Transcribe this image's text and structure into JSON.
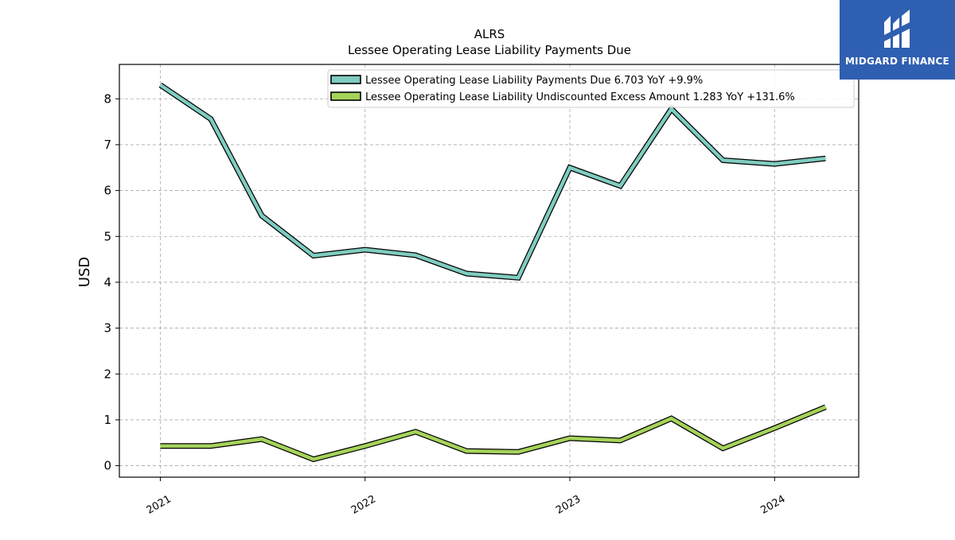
{
  "brand": {
    "name": "MIDGARD FINANCE"
  },
  "chart_data": {
    "type": "line",
    "title": "ALRS",
    "subtitle": "Lessee Operating Lease Liability Payments Due",
    "xlabel": "",
    "ylabel": "USD",
    "x": [
      "2021-01-01",
      "2021-04-01",
      "2021-07-01",
      "2021-10-01",
      "2022-01-01",
      "2022-04-01",
      "2022-07-01",
      "2022-10-01",
      "2023-01-01",
      "2023-04-01",
      "2023-07-01",
      "2023-10-01",
      "2024-01-01",
      "2024-04-01"
    ],
    "xticks": [
      "2021",
      "2022",
      "2023",
      "2024"
    ],
    "xtick_dates": [
      "2021-01-01",
      "2022-01-01",
      "2023-01-01",
      "2024-01-01"
    ],
    "xlim": [
      "2020-10-20",
      "2024-05-30"
    ],
    "ylim": [
      -0.25,
      8.75
    ],
    "yticks": [
      0,
      1,
      2,
      3,
      4,
      5,
      6,
      7,
      8
    ],
    "grid": true,
    "legend_position": "upper right",
    "series": [
      {
        "name": "Lessee Operating Lease Liability Payments Due",
        "legend_value": "6.703 YoY +9.9%",
        "color": "#7fccc0",
        "values": [
          8.3,
          7.56,
          5.45,
          4.58,
          4.71,
          4.59,
          4.19,
          4.1,
          6.5,
          6.1,
          7.78,
          6.66,
          6.58,
          6.7
        ]
      },
      {
        "name": "Lessee Operating Lease Liability Undiscounted Excess Amount",
        "legend_value": "1.283 YoY +131.6%",
        "color": "#a5d35a",
        "values": [
          0.43,
          0.43,
          0.58,
          0.14,
          0.43,
          0.74,
          0.32,
          0.3,
          0.6,
          0.55,
          1.03,
          0.38,
          0.82,
          1.28
        ]
      }
    ]
  }
}
